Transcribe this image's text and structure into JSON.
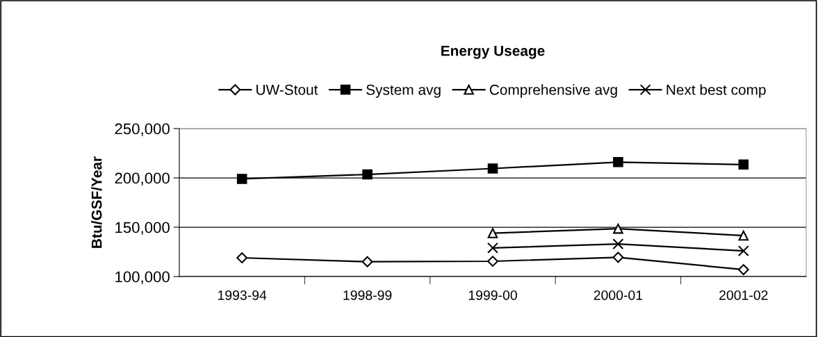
{
  "chart_data": {
    "type": "line",
    "title": "Energy Useage",
    "ylabel": "Btu/GSF/Year",
    "categories": [
      "1993-94",
      "1998-99",
      "1999-00",
      "2000-01",
      "2001-02"
    ],
    "series": [
      {
        "name": "UW-Stout",
        "color": "#000000",
        "marker": "diamond",
        "values": [
          119000,
          115000,
          115500,
          119500,
          107000
        ]
      },
      {
        "name": "System avg",
        "color": "#000000",
        "marker": "square",
        "values": [
          199000,
          203500,
          209500,
          216000,
          213500
        ]
      },
      {
        "name": "Comprehensive avg",
        "color": "#000000",
        "marker": "triangle",
        "values": [
          null,
          null,
          144000,
          148500,
          141500
        ]
      },
      {
        "name": "Next best comp",
        "color": "#000000",
        "marker": "cross",
        "values": [
          null,
          null,
          129000,
          133000,
          126000
        ]
      }
    ],
    "ylim": [
      100000,
      250000
    ],
    "yticks": [
      {
        "value": 100000,
        "label": "100,000"
      },
      {
        "value": 150000,
        "label": "150,000"
      },
      {
        "value": 200000,
        "label": "200,000"
      },
      {
        "value": 250000,
        "label": "250,000"
      }
    ],
    "grid": "y",
    "legend": "top",
    "line_style": "solid"
  }
}
